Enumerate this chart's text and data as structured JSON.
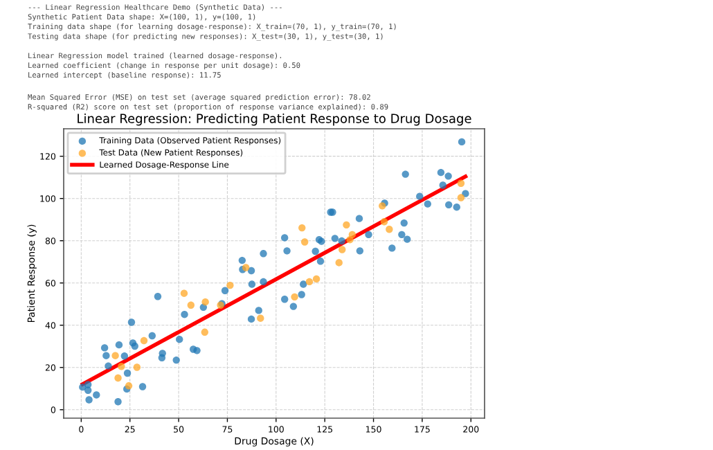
{
  "chart_data": {
    "type": "scatter",
    "title": "Linear Regression: Predicting Patient Response to Drug Dosage",
    "xlabel": "Drug Dosage (X)",
    "ylabel": "Patient Response (y)",
    "annotations": [
      "--- Linear Regression Healthcare Demo (Synthetic Data) ---\nSynthetic Patient Data shape: X=(100, 1), y=(100, 1)\nTraining data shape (for learning dosage-response): X_train=(70, 1), y_train=(70, 1)\nTesting data shape (for predicting new responses): X_test=(30, 1), y_test=(30, 1)",
      "Linear Regression model trained (learned dosage-response).\nLearned coefficient (change in response per unit dosage): 0.50\nLearned intercept (baseline response): 11.75",
      "Mean Squared Error (MSE) on test set (average squared prediction error): 78.02\nR-squared (R2) score on test set (proportion of response variance explained): 0.89"
    ],
    "xlim": [
      -9,
      207
    ],
    "ylim": [
      -4,
      133
    ],
    "xticks": [
      0,
      25,
      50,
      75,
      100,
      125,
      150,
      175,
      200
    ],
    "yticks": [
      0,
      20,
      40,
      60,
      80,
      100,
      120
    ],
    "grid": true,
    "legend": "top left",
    "marker": "circle",
    "series": [
      {
        "name": "Training Data (Observed Patient Responses)",
        "color": "#1f77b4",
        "x": [
          0.7,
          3.5,
          3.5,
          4,
          7.8,
          12,
          12.8,
          13.9,
          19.4,
          18.9,
          22.2,
          23.7,
          23.4,
          25.8,
          26.5,
          27.5,
          36.4,
          39.3,
          41.7,
          41.4,
          31.5,
          48.8,
          50.4,
          53,
          57.5,
          59.4,
          62.7,
          72.2,
          73.8,
          82.6,
          82.8,
          87.3,
          87.6,
          87.3,
          91.1,
          93.5,
          93.5,
          104.4,
          104.4,
          105.6,
          108.9,
          113.1,
          114,
          120.2,
          122.1,
          123.3,
          122.8,
          128,
          129,
          130.2,
          133.7,
          142.7,
          143,
          147.5,
          155.7,
          159.5,
          164.5,
          165.7,
          166.4,
          167.3,
          173.7,
          177.8,
          184.6,
          185.6,
          188.4,
          188.6,
          192.7,
          195.3,
          197.2
        ],
        "values": [
          10.7,
          11.9,
          9.2,
          4.7,
          7,
          29.3,
          25.6,
          20.7,
          30.7,
          3.8,
          25.4,
          17.3,
          9.8,
          41.4,
          31.6,
          30.1,
          35,
          53.6,
          26.7,
          24.6,
          10.9,
          23.5,
          33.3,
          45.1,
          28.6,
          28,
          48.5,
          50.2,
          56.4,
          70.7,
          66.4,
          65.8,
          59.4,
          42.9,
          47,
          60.6,
          73.9,
          81.4,
          52.3,
          75.2,
          48.9,
          54.5,
          59.4,
          75,
          80.5,
          79.7,
          70.3,
          93.5,
          93.5,
          81.1,
          79.9,
          90.5,
          75.2,
          82.9,
          97.8,
          76.5,
          82.9,
          88.4,
          111.5,
          80.7,
          101,
          97.4,
          112.3,
          106.3,
          110.6,
          97,
          95.9,
          126.8,
          102.3
        ]
      },
      {
        "name": "Test Data (New Patient Responses)",
        "color": "#ffa726",
        "x": [
          17.5,
          18.9,
          20.6,
          24.4,
          28.6,
          32.2,
          52.8,
          56.3,
          63.7,
          63.4,
          71.5,
          76.4,
          84.5,
          92,
          109.5,
          113.3,
          114.7,
          117.1,
          120.7,
          132.3,
          133.9,
          136.1,
          137.9,
          139.1,
          154.5,
          155.5,
          158.1,
          194.9,
          194.9
        ],
        "values": [
          25.6,
          15,
          20.5,
          11.3,
          20.1,
          32.7,
          55.1,
          49.5,
          51,
          36.7,
          49.5,
          58.9,
          67.3,
          43.3,
          53.4,
          86.1,
          79.4,
          60.6,
          61.9,
          69.6,
          75.8,
          87.5,
          80.5,
          82.9,
          96.5,
          89,
          85.4,
          107.2,
          100.4
        ]
      },
      {
        "name": "Learned Dosage-Response Line",
        "type": "line",
        "color": "#ff0000",
        "x": [
          0.7,
          197.2
        ],
        "values": [
          12.1,
          110.4
        ],
        "marker": "none",
        "line_style": "solid"
      }
    ]
  }
}
